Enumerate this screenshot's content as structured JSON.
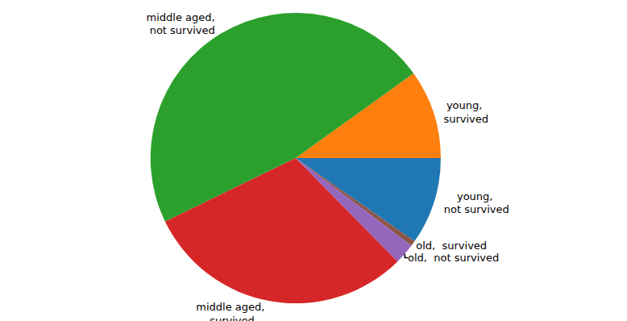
{
  "chart_data": {
    "type": "pie",
    "categories": [
      "young,\n not survived",
      "young,\n survived",
      "middle aged,\n not survived",
      "middle aged,\n survived",
      "old,  not survived",
      "old,  survived"
    ],
    "values": [
      9.7,
      9.9,
      47.3,
      30.2,
      2.3,
      0.6
    ],
    "colors": [
      "#1f77b4",
      "#ff7f0e",
      "#2ca02c",
      "#d62728",
      "#9467bd",
      "#8c564b"
    ]
  }
}
